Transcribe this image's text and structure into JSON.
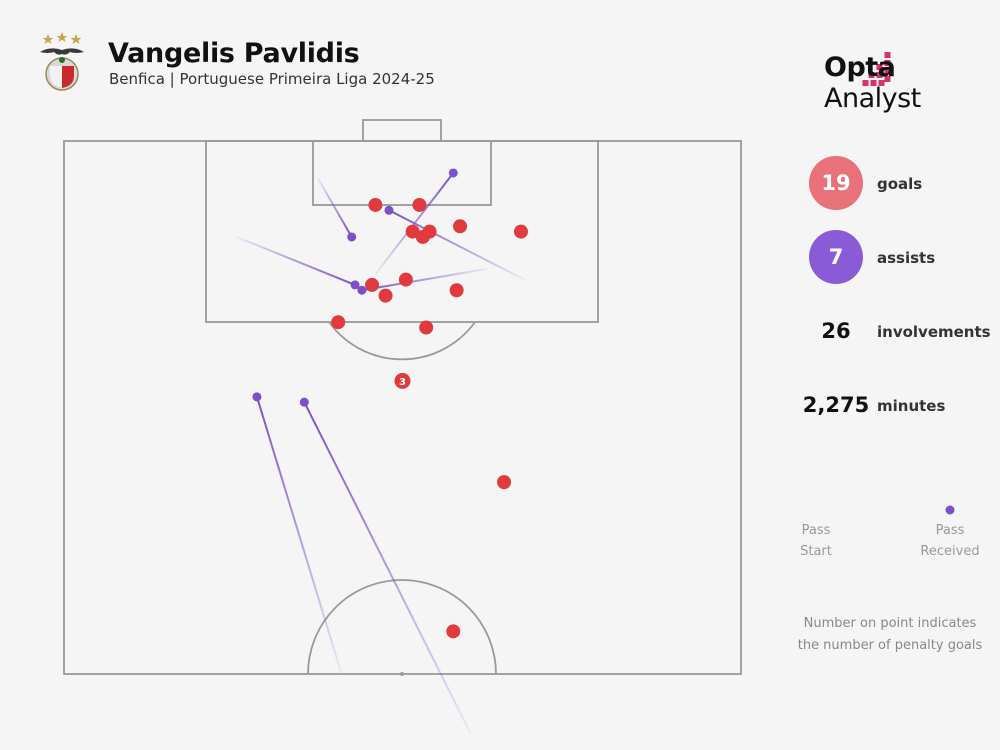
{
  "header": {
    "title": "Vangelis Pavlidis",
    "subtitle": "Benfica | Portuguese Primeira Liga 2024-25",
    "brand_bold": "Opta",
    "brand_light": " Analyst"
  },
  "colors": {
    "goal": "#e0393e",
    "assist": "#7b50c8",
    "goal_circle": "#e8717a",
    "assist_circle": "#8a5bd6",
    "line": "#999999"
  },
  "stats": {
    "goals_value": "19",
    "goals_label": "goals",
    "assists_value": "7",
    "assists_label": "assists",
    "involvements_value": "26",
    "involvements_label": "involvements",
    "minutes_value": "2,275",
    "minutes_label": "minutes"
  },
  "legend": {
    "pass_start_1": "Pass",
    "pass_start_2": "Start",
    "pass_received_1": "Pass",
    "pass_received_2": "Received"
  },
  "note": {
    "line1": "Number on point indicates",
    "line2": "the number of penalty goals"
  },
  "chart_data": {
    "type": "scatter",
    "goals": [
      {
        "x": 46.0,
        "y": 94.0
      },
      {
        "x": 52.5,
        "y": 94.0
      },
      {
        "x": 51.5,
        "y": 91.5
      },
      {
        "x": 53.0,
        "y": 91.0
      },
      {
        "x": 54.0,
        "y": 91.5
      },
      {
        "x": 58.5,
        "y": 92.0
      },
      {
        "x": 67.5,
        "y": 91.5
      },
      {
        "x": 45.5,
        "y": 86.5
      },
      {
        "x": 50.5,
        "y": 87.0
      },
      {
        "x": 47.5,
        "y": 85.5
      },
      {
        "x": 58.0,
        "y": 86.0
      },
      {
        "x": 40.5,
        "y": 83.0
      },
      {
        "x": 53.5,
        "y": 82.5
      },
      {
        "x": 50.0,
        "y": 77.5,
        "label": "3"
      },
      {
        "x": 65.0,
        "y": 68.0
      },
      {
        "x": 57.5,
        "y": 54.0
      }
    ],
    "assists": [
      {
        "start": {
          "x": 62.5,
          "y": 88.0
        },
        "received": {
          "x": 44.0,
          "y": 86.0
        }
      },
      {
        "start": {
          "x": 37.5,
          "y": 96.5
        },
        "received": {
          "x": 42.5,
          "y": 91.0
        }
      },
      {
        "start": {
          "x": 46.0,
          "y": 87.5
        },
        "received": {
          "x": 57.5,
          "y": 97.0
        }
      },
      {
        "start": {
          "x": 25.5,
          "y": 91.0
        },
        "received": {
          "x": 43.0,
          "y": 86.5
        }
      },
      {
        "start": {
          "x": 68.0,
          "y": 87.0
        },
        "received": {
          "x": 48.0,
          "y": 93.5
        }
      },
      {
        "start": {
          "x": 41.0,
          "y": 50.0
        },
        "received": {
          "x": 28.5,
          "y": 76.0
        }
      },
      {
        "start": {
          "x": 60.0,
          "y": 44.5
        },
        "received": {
          "x": 35.5,
          "y": 75.5
        }
      }
    ]
  }
}
